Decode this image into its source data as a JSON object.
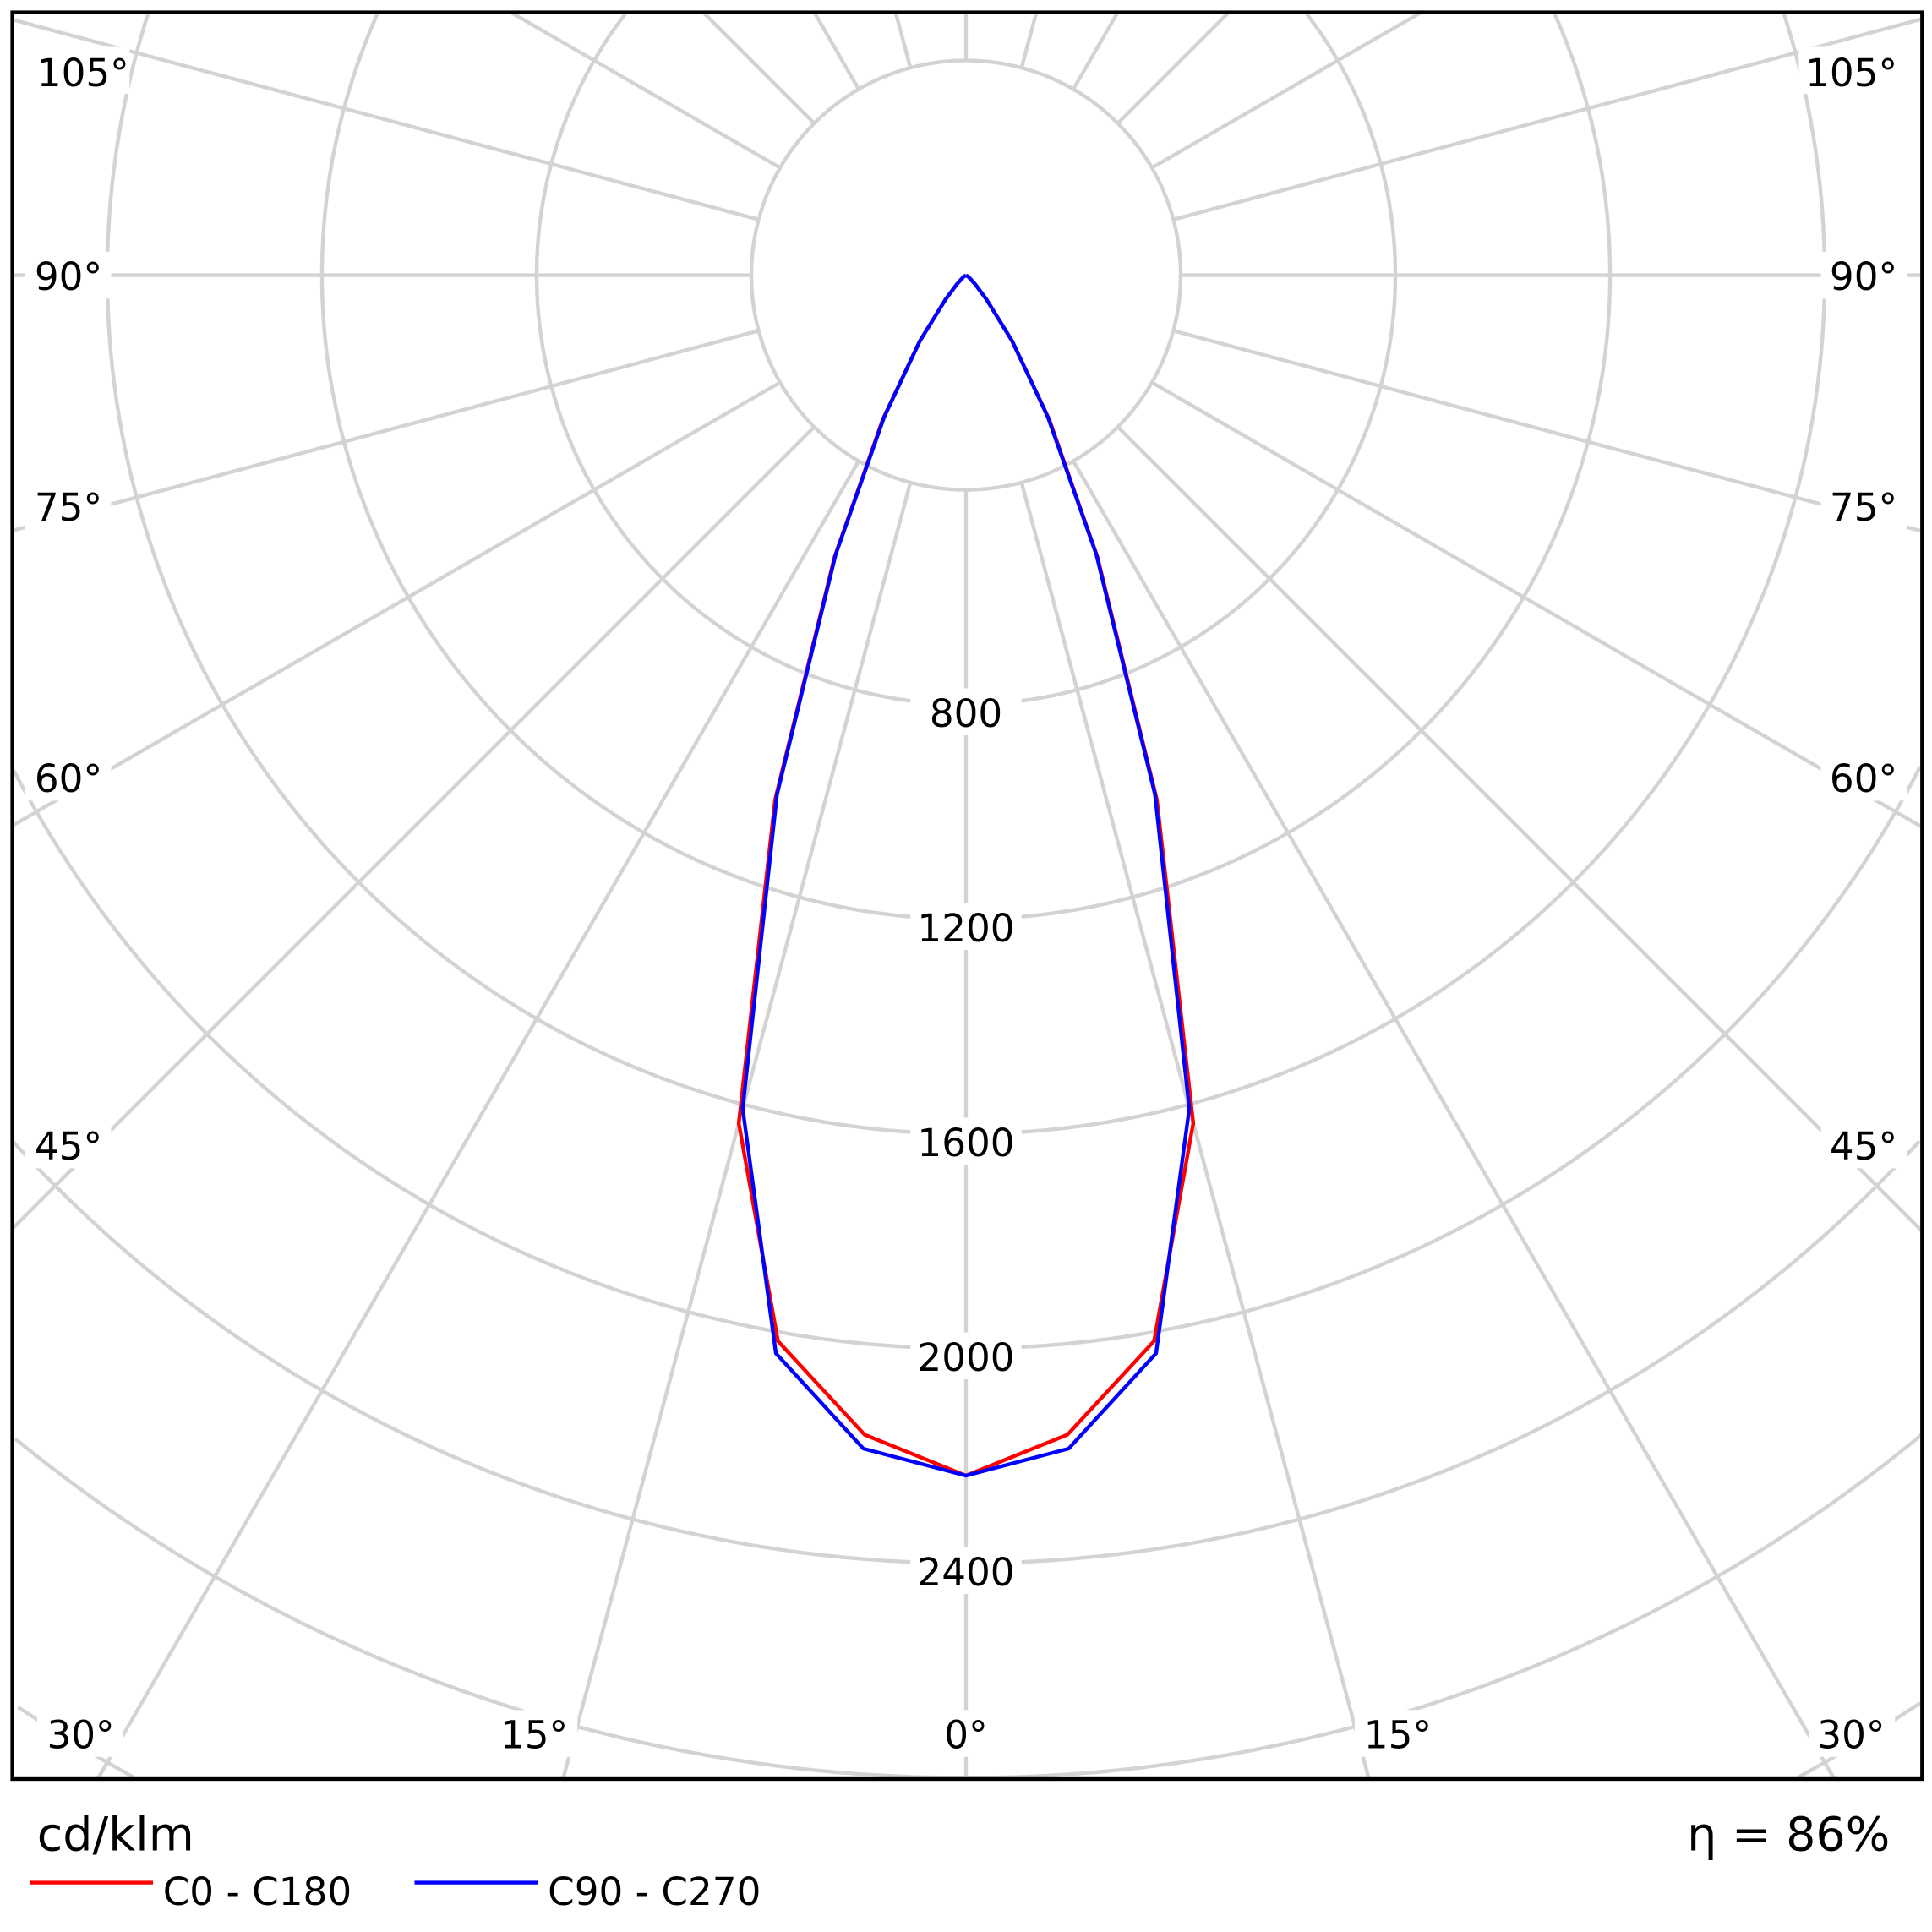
{
  "chart_data": {
    "type": "polar-line",
    "unit_label": "cd/klm",
    "efficiency_label": "η = 86%",
    "angles_deg": [
      0,
      5,
      10,
      15,
      20,
      25,
      30,
      35,
      40,
      45,
      50,
      55,
      60,
      65,
      70,
      75,
      80,
      85,
      90
    ],
    "series": [
      {
        "name": "C0 - C180",
        "color": "#ff0000",
        "values": [
          2237,
          2169,
          2017,
          1636,
          1040,
          580,
          310,
          150,
          60,
          25,
          10,
          5,
          0,
          0,
          0,
          0,
          0,
          0,
          0
        ]
      },
      {
        "name": "C90 - C270",
        "color": "#0000ff",
        "values": [
          2237,
          2195,
          2040,
          1608,
          1030,
          575,
          305,
          150,
          60,
          25,
          10,
          5,
          0,
          0,
          0,
          0,
          0,
          0,
          0
        ]
      }
    ],
    "radial_ticks": [
      "800",
      "1200",
      "1600",
      "2000",
      "2400"
    ],
    "radial_tick_values": [
      800,
      1200,
      1600,
      2000,
      2400
    ],
    "ring_step": 400,
    "angle_labels_left": [
      "105°",
      "90°",
      "75°",
      "60°",
      "45°",
      "30°",
      "15°"
    ],
    "angle_labels_right": [
      "105°",
      "90°",
      "75°",
      "60°",
      "45°",
      "30°",
      "15°"
    ],
    "angle_label_center": "0°",
    "grid": true,
    "grid_color": "#d3d3d3",
    "legend_position": "bottom-left"
  }
}
